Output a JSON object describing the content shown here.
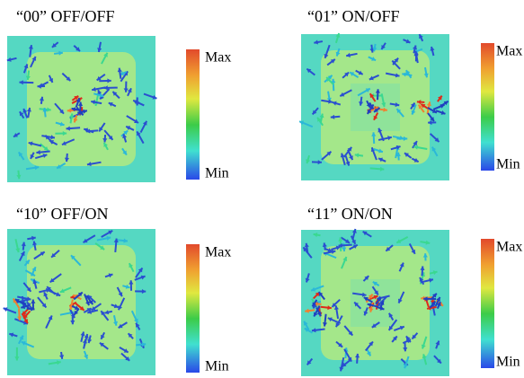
{
  "panels": [
    {
      "title": "“00” OFF/OFF",
      "max_label": "Max",
      "min_label": "Min"
    },
    {
      "title": "“01” ON/OFF",
      "max_label": "Max",
      "min_label": "Min"
    },
    {
      "title": "“10” OFF/ON",
      "max_label": "Max",
      "min_label": "Min"
    },
    {
      "title": "“11” ON/ON",
      "max_label": "Max",
      "min_label": "Min"
    }
  ]
}
